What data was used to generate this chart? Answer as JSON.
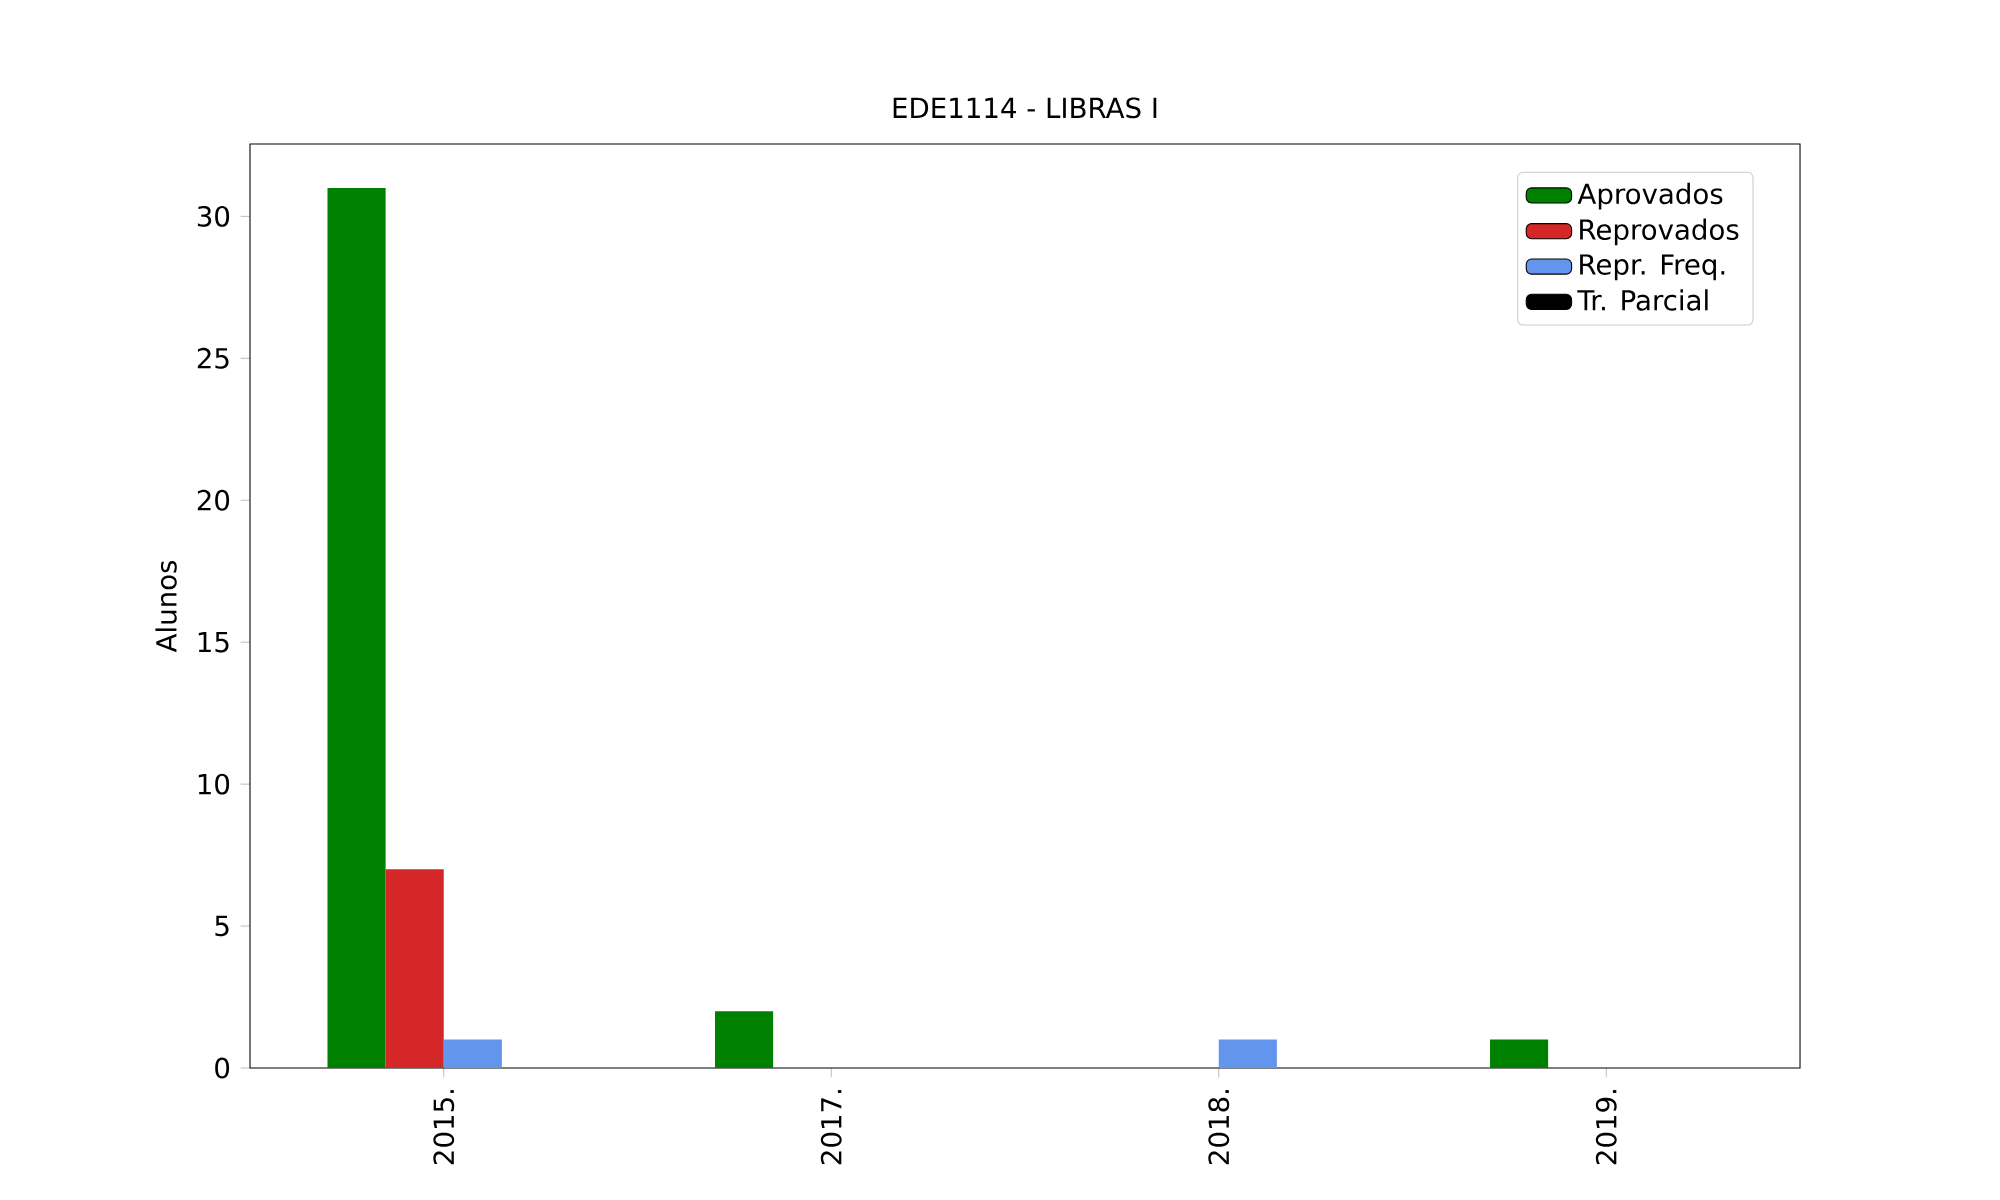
{
  "chart_data": {
    "type": "bar",
    "title": "EDE1114 - LIBRAS I",
    "ylabel": "Alunos",
    "categories": [
      "2015.",
      "2017.",
      "2018.",
      "2019."
    ],
    "series": [
      {
        "name": "Aprovados",
        "color": "#008000",
        "values": [
          31,
          2,
          0,
          1
        ]
      },
      {
        "name": "Reprovados",
        "color": "#d62728",
        "values": [
          7,
          0,
          0,
          0
        ]
      },
      {
        "name": "Repr. Freq.",
        "color": "#6495ed",
        "values": [
          1,
          0,
          1,
          0
        ]
      },
      {
        "name": "Tr. Parcial",
        "color": "#000000",
        "values": [
          0,
          0,
          0,
          0
        ]
      }
    ],
    "ylim": [
      0,
      32.55
    ],
    "yticks": [
      0,
      5,
      10,
      15,
      20,
      25,
      30
    ],
    "legend": "top right",
    "grid": false
  }
}
